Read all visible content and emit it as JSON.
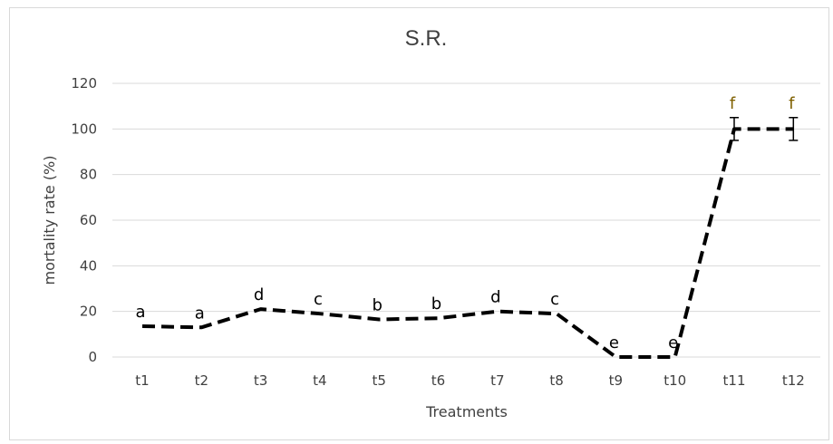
{
  "chart_data": {
    "type": "line",
    "title": "S.R.",
    "xlabel": "Treatments",
    "ylabel": "mortality rate (%)",
    "categories": [
      "t1",
      "t2",
      "t3",
      "t4",
      "t5",
      "t6",
      "t7",
      "t8",
      "t9",
      "t10",
      "t11",
      "t12"
    ],
    "series": [
      {
        "values": [
          13.5,
          13,
          21,
          19,
          16.5,
          17,
          20,
          19,
          0,
          0,
          100,
          100
        ],
        "error": [
          0,
          0,
          0,
          0,
          0,
          0,
          0,
          0,
          0,
          0,
          5,
          5
        ],
        "color": "#000000",
        "line_style": "dashed"
      }
    ],
    "annotations": [
      "a",
      "a",
      "d",
      "c",
      "b",
      "b",
      "d",
      "c",
      "e",
      "e",
      "f",
      "f"
    ],
    "annotation_colors": [
      "#000000",
      "#000000",
      "#000000",
      "#000000",
      "#000000",
      "#000000",
      "#000000",
      "#000000",
      "#000000",
      "#000000",
      "#7f6000",
      "#7f6000"
    ],
    "yticks": [
      0,
      20,
      40,
      60,
      80,
      100,
      120
    ],
    "ylim": [
      0,
      120
    ],
    "grid": true,
    "legend": "none"
  }
}
